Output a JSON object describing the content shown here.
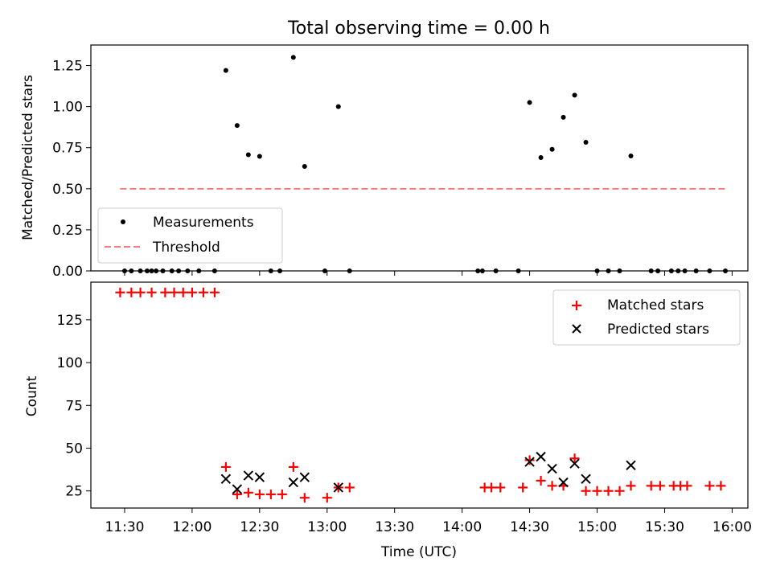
{
  "chart_data": [
    {
      "type": "scatter",
      "title": "Total observing time = 0.00 h",
      "ylabel": "Matched/Predicted stars",
      "xlabel": "",
      "ylim": [
        0,
        1.375
      ],
      "yticks": [
        "0.00",
        "0.25",
        "0.50",
        "0.75",
        "1.00",
        "1.25"
      ],
      "legend": {
        "placement": "bottom-left",
        "measurements": "Measurements",
        "threshold": "Threshold"
      },
      "colors": {
        "measurements": "#000000",
        "threshold": "#f08080"
      },
      "threshold": {
        "value": 0.5,
        "x_start": "11:28",
        "x_end": "15:57"
      },
      "points": [
        [
          "11:30",
          0
        ],
        [
          "11:33",
          0
        ],
        [
          "11:37",
          0
        ],
        [
          "11:40",
          0
        ],
        [
          "11:42",
          0
        ],
        [
          "11:44",
          0
        ],
        [
          "11:47",
          0
        ],
        [
          "11:51",
          0
        ],
        [
          "11:54",
          0
        ],
        [
          "11:58",
          0
        ],
        [
          "12:03",
          0
        ],
        [
          "12:10",
          0
        ],
        [
          "12:15",
          1.22
        ],
        [
          "12:20",
          0.885
        ],
        [
          "12:25",
          0.707
        ],
        [
          "12:30",
          0.697
        ],
        [
          "12:35",
          0
        ],
        [
          "12:39",
          0
        ],
        [
          "12:45",
          1.3
        ],
        [
          "12:50",
          0.636
        ],
        [
          "12:59",
          0
        ],
        [
          "13:05",
          1.0
        ],
        [
          "13:10",
          0
        ],
        [
          "14:07",
          0
        ],
        [
          "14:09",
          0
        ],
        [
          "14:15",
          0
        ],
        [
          "14:25",
          0
        ],
        [
          "14:30",
          1.025
        ],
        [
          "14:35",
          0.69
        ],
        [
          "14:40",
          0.74
        ],
        [
          "14:45",
          0.935
        ],
        [
          "14:50",
          1.07
        ],
        [
          "14:55",
          0.783
        ],
        [
          "15:00",
          0
        ],
        [
          "15:05",
          0
        ],
        [
          "15:10",
          0
        ],
        [
          "15:15",
          0.7
        ],
        [
          "15:24",
          0
        ],
        [
          "15:27",
          0
        ],
        [
          "15:33",
          0
        ],
        [
          "15:36",
          0
        ],
        [
          "15:39",
          0
        ],
        [
          "15:44",
          0
        ],
        [
          "15:50",
          0
        ],
        [
          "15:57",
          0
        ]
      ]
    },
    {
      "type": "scatter",
      "title": "",
      "ylabel": "Count",
      "xlabel": "Time (UTC)",
      "ylim": [
        15,
        147
      ],
      "yticks": [
        "25",
        "50",
        "75",
        "100",
        "125"
      ],
      "xlim": [
        "11:15",
        "16:07"
      ],
      "xticks": [
        "11:30",
        "12:00",
        "12:30",
        "13:00",
        "13:30",
        "14:00",
        "14:30",
        "15:00",
        "15:30",
        "16:00"
      ],
      "legend": {
        "placement": "top-right",
        "matched": "Matched stars",
        "predicted": "Predicted stars"
      },
      "colors": {
        "matched": "#ff0000",
        "predicted": "#000000"
      },
      "series": [
        {
          "name": "Matched stars",
          "points": [
            [
              "11:28",
              141
            ],
            [
              "11:33",
              141
            ],
            [
              "11:37",
              141
            ],
            [
              "11:42",
              141
            ],
            [
              "11:48",
              141
            ],
            [
              "11:52",
              141
            ],
            [
              "11:56",
              141
            ],
            [
              "12:00",
              141
            ],
            [
              "12:05",
              141
            ],
            [
              "12:10",
              141
            ],
            [
              "12:15",
              39
            ],
            [
              "12:20",
              23
            ],
            [
              "12:25",
              24
            ],
            [
              "12:30",
              23
            ],
            [
              "12:35",
              23
            ],
            [
              "12:40",
              23
            ],
            [
              "12:45",
              39
            ],
            [
              "12:50",
              21
            ],
            [
              "13:00",
              21
            ],
            [
              "13:05",
              27
            ],
            [
              "13:10",
              27
            ],
            [
              "14:10",
              27
            ],
            [
              "14:13",
              27
            ],
            [
              "14:17",
              27
            ],
            [
              "14:27",
              27
            ],
            [
              "14:30",
              43
            ],
            [
              "14:35",
              31
            ],
            [
              "14:40",
              28
            ],
            [
              "14:45",
              28
            ],
            [
              "14:50",
              44
            ],
            [
              "14:55",
              25
            ],
            [
              "15:00",
              25
            ],
            [
              "15:05",
              25
            ],
            [
              "15:10",
              25
            ],
            [
              "15:15",
              28
            ],
            [
              "15:24",
              28
            ],
            [
              "15:28",
              28
            ],
            [
              "15:34",
              28
            ],
            [
              "15:37",
              28
            ],
            [
              "15:40",
              28
            ],
            [
              "15:50",
              28
            ],
            [
              "15:55",
              28
            ]
          ]
        },
        {
          "name": "Predicted stars",
          "points": [
            [
              "12:15",
              32
            ],
            [
              "12:20",
              26
            ],
            [
              "12:25",
              34
            ],
            [
              "12:30",
              33
            ],
            [
              "12:45",
              30
            ],
            [
              "12:50",
              33
            ],
            [
              "13:05",
              27
            ],
            [
              "14:30",
              42
            ],
            [
              "14:35",
              45
            ],
            [
              "14:40",
              38
            ],
            [
              "14:45",
              30
            ],
            [
              "14:50",
              41
            ],
            [
              "14:55",
              32
            ],
            [
              "15:15",
              40
            ]
          ]
        }
      ]
    }
  ]
}
